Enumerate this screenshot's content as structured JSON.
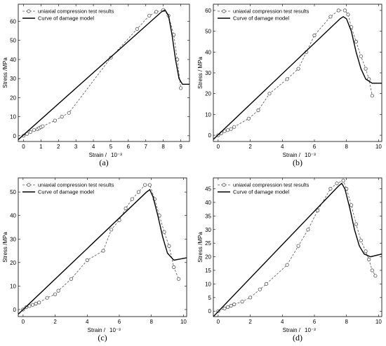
{
  "chart_data": [
    {
      "type": "line",
      "caption": "(a)",
      "xlabel": "Strain /",
      "xunit": "10⁻³",
      "ylabel": "Stress /MPa",
      "xlim": [
        -0.3,
        9.5
      ],
      "ylim": [
        -3,
        69
      ],
      "xticks": [
        0,
        1,
        2,
        3,
        4,
        5,
        6,
        7,
        8,
        9
      ],
      "yticks": [
        0,
        10,
        20,
        30,
        40,
        50,
        60
      ],
      "legend_position": "top-left",
      "series": [
        {
          "name": "uniaxial compression test results",
          "style": "dashed-circles",
          "color": "#555555",
          "x": [
            0,
            0.2,
            0.4,
            0.6,
            0.8,
            0.9,
            1.0,
            1.1,
            1.8,
            2.2,
            2.6,
            5.0,
            6.5,
            7.2,
            7.6,
            8.0,
            8.3,
            8.6,
            8.8,
            9.0
          ],
          "y": [
            0,
            1,
            2,
            3,
            3.5,
            4,
            4.5,
            5,
            8,
            10,
            12,
            41,
            56,
            63,
            65,
            66,
            63,
            53,
            40,
            25
          ]
        },
        {
          "name": "Curve of damage model",
          "style": "solid",
          "color": "#000000",
          "x": [
            -0.3,
            7.9,
            8.1,
            8.3,
            8.5,
            8.7,
            8.9,
            9.1,
            9.5
          ],
          "y": [
            -2,
            65,
            66,
            63,
            53,
            40,
            30,
            27,
            27
          ]
        }
      ]
    },
    {
      "type": "line",
      "caption": "(b)",
      "xlabel": "Strain /",
      "xunit": "10⁻³",
      "ylabel": "Stress / MPa",
      "xlim": [
        -0.3,
        10.2
      ],
      "ylim": [
        -3,
        63
      ],
      "xticks": [
        0,
        2,
        4,
        6,
        8,
        10
      ],
      "yticks": [
        0,
        10,
        20,
        30,
        40,
        50,
        60
      ],
      "legend_position": "top-left",
      "series": [
        {
          "name": "uniaxial compression test results",
          "style": "dashed-circles",
          "color": "#555555",
          "x": [
            0,
            0.2,
            0.4,
            0.6,
            0.8,
            1.0,
            1.9,
            2.5,
            3.2,
            4.3,
            5.0,
            5.5,
            6.0,
            7.0,
            7.5,
            7.9,
            8.1,
            8.3,
            8.6,
            8.9,
            9.2,
            9.4,
            9.6
          ],
          "y": [
            0,
            1,
            2,
            2.5,
            3,
            4,
            8,
            12,
            20,
            27,
            32,
            40,
            48,
            57,
            60,
            60,
            58,
            52,
            45,
            38,
            32,
            27,
            19
          ]
        },
        {
          "name": "Curve of damage model",
          "style": "solid",
          "color": "#000000",
          "x": [
            -0.3,
            7.6,
            7.8,
            8.0,
            8.3,
            8.6,
            8.9,
            9.2,
            9.6,
            10.2
          ],
          "y": [
            -2,
            56,
            57,
            56,
            50,
            40,
            32,
            27,
            25,
            25
          ]
        }
      ]
    },
    {
      "type": "line",
      "caption": "(c)",
      "xlabel": "Strain /",
      "xunit": "10⁻³",
      "ylabel": "Stress /MPa",
      "xlim": [
        -0.3,
        10.2
      ],
      "ylim": [
        -3,
        56
      ],
      "xticks": [
        0,
        2,
        4,
        6,
        8,
        10
      ],
      "yticks": [
        0,
        10,
        20,
        30,
        40,
        50
      ],
      "legend_position": "top-left",
      "series": [
        {
          "name": "uniaxial compression test results",
          "style": "dashed-circles",
          "color": "#555555",
          "x": [
            0,
            0.2,
            0.4,
            0.6,
            0.8,
            1.0,
            1.5,
            2.0,
            2.2,
            3.0,
            4.0,
            5.0,
            5.5,
            6.0,
            6.4,
            6.8,
            7.2,
            7.6,
            7.9,
            8.2,
            8.5,
            8.8,
            9.1,
            9.4,
            9.7
          ],
          "y": [
            0,
            1,
            1.5,
            2,
            2.5,
            3,
            5,
            6.5,
            8,
            13,
            21,
            25,
            34,
            38,
            43,
            47,
            50,
            53,
            53,
            47,
            40,
            33,
            27,
            18,
            13
          ]
        },
        {
          "name": "Curve of damage model",
          "style": "solid",
          "color": "#000000",
          "x": [
            -0.3,
            7.7,
            7.9,
            8.1,
            8.4,
            8.7,
            9.0,
            9.4,
            10.2
          ],
          "y": [
            -2,
            50,
            51,
            48,
            40,
            31,
            24,
            21,
            22
          ]
        }
      ]
    },
    {
      "type": "line",
      "caption": "(d)",
      "xlabel": "Strain /",
      "xunit": "10⁻³",
      "ylabel": "Stress /MPa",
      "xlim": [
        -0.3,
        10.2
      ],
      "ylim": [
        -2,
        49
      ],
      "xticks": [
        0,
        2,
        4,
        6,
        8,
        10
      ],
      "yticks": [
        0,
        5,
        10,
        15,
        20,
        25,
        30,
        35,
        40,
        45
      ],
      "legend_position": "top-left",
      "series": [
        {
          "name": "uniaxial compression test results",
          "style": "dashed-circles",
          "color": "#555555",
          "x": [
            0,
            0.4,
            0.6,
            0.8,
            1.0,
            1.5,
            2.0,
            2.6,
            3.0,
            4.3,
            5.0,
            5.6,
            6.2,
            7.0,
            7.4,
            7.8,
            8.0,
            8.3,
            8.6,
            8.9,
            9.2,
            9.4,
            9.6,
            9.8
          ],
          "y": [
            0,
            1,
            1.5,
            2,
            2.5,
            3.5,
            5,
            8,
            10,
            17,
            24,
            30,
            37,
            45,
            47,
            48,
            45,
            39,
            32,
            26,
            22,
            19,
            15,
            13
          ]
        },
        {
          "name": "Curve of damage model",
          "style": "solid",
          "color": "#000000",
          "x": [
            -0.3,
            7.5,
            7.7,
            7.9,
            8.2,
            8.5,
            8.8,
            9.1,
            9.5,
            10.2
          ],
          "y": [
            -2,
            46,
            47,
            45,
            38,
            30,
            24,
            21,
            20,
            21
          ]
        }
      ]
    }
  ]
}
